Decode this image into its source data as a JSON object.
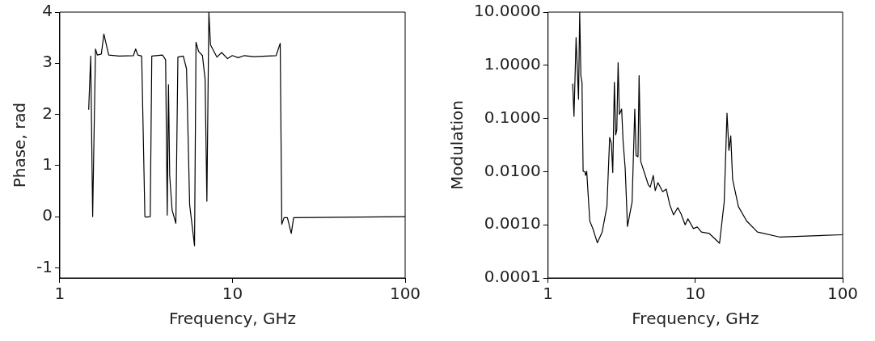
{
  "chart_data": [
    {
      "type": "line",
      "xlabel": "Frequency, GHz",
      "ylabel": "Phase, rad",
      "log": "x",
      "xlim": [
        1,
        100
      ],
      "xticks": [
        1,
        10,
        100
      ],
      "ylim": [
        -1.2,
        4
      ],
      "yticks": [
        -1,
        0,
        1,
        2,
        3,
        4
      ],
      "series": [
        {
          "color": "#000000",
          "x": [
            1.47,
            1.51,
            1.55,
            1.61,
            1.65,
            1.74,
            1.8,
            1.92,
            2.21,
            2.67,
            2.75,
            2.83,
            2.98,
            3.11,
            3.17,
            3.34,
            3.41,
            3.93,
            4.1,
            4.19,
            4.26,
            4.33,
            4.47,
            4.7,
            4.83,
            5.19,
            5.42,
            5.65,
            6.03,
            6.15,
            6.37,
            6.7,
            6.94,
            7.11,
            7.3,
            7.46,
            8.13,
            8.66,
            9.36,
            9.98,
            10.8,
            11.7,
            13.3,
            17.9,
            18.9,
            19.3,
            19.9,
            20.8,
            21.9,
            22.6,
            100
          ],
          "values": [
            2.09,
            3.14,
            0,
            3.28,
            3.16,
            3.18,
            3.57,
            3.16,
            3.14,
            3.15,
            3.28,
            3.16,
            3.14,
            0,
            -0.01,
            0,
            3.14,
            3.16,
            3.07,
            0.03,
            2.58,
            0.8,
            0.13,
            -0.13,
            3.12,
            3.14,
            2.89,
            0.23,
            -0.57,
            3.41,
            3.23,
            3.15,
            2.69,
            0.3,
            4,
            3.36,
            3.12,
            3.21,
            3.09,
            3.15,
            3.11,
            3.15,
            3.13,
            3.15,
            3.39,
            -0.15,
            -0.02,
            -0.02,
            -0.33,
            -0.02,
            0
          ]
        }
      ]
    },
    {
      "type": "line",
      "xlabel": "Frequency, GHz",
      "ylabel": "Modulation",
      "log": "xy",
      "xlim": [
        1,
        100
      ],
      "xticks": [
        1,
        10,
        100
      ],
      "ylim": [
        0.0001,
        10
      ],
      "yticks": [
        {
          "value": 0.0001,
          "label": "0.0001"
        },
        {
          "value": 0.001,
          "label": "0.0010"
        },
        {
          "value": 0.01,
          "label": "0.0100"
        },
        {
          "value": 0.1,
          "label": "0.1000"
        },
        {
          "value": 1,
          "label": "1.0000"
        },
        {
          "value": 10,
          "label": "10.0000"
        }
      ],
      "series": [
        {
          "color": "#000000",
          "x": [
            1.47,
            1.5,
            1.55,
            1.61,
            1.64,
            1.67,
            1.7,
            1.73,
            1.78,
            1.8,
            1.83,
            1.92,
            2.02,
            2.16,
            2.33,
            2.51,
            2.62,
            2.69,
            2.75,
            2.82,
            2.88,
            2.93,
            2.99,
            3.05,
            3.16,
            3.23,
            3.34,
            3.46,
            3.72,
            3.88,
            3.96,
            4.08,
            4.15,
            4.26,
            4.8,
            4.94,
            5.18,
            5.34,
            5.57,
            6.0,
            6.34,
            6.7,
            7.11,
            7.6,
            8.0,
            8.53,
            8.9,
            9.7,
            10.3,
            11.0,
            12.4,
            14.6,
            15.7,
            16.4,
            16.9,
            17.4,
            17.9,
            19.6,
            22.3,
            26.4,
            37.2,
            100
          ],
          "values": [
            0.45,
            0.11,
            3.3,
            0.23,
            10,
            0.64,
            0.48,
            0.0102,
            0.0099,
            0.0085,
            0.0102,
            0.00118,
            0.00083,
            0.00046,
            0.00073,
            0.0022,
            0.044,
            0.034,
            0.0096,
            0.48,
            0.049,
            0.061,
            1.12,
            0.12,
            0.15,
            0.038,
            0.0115,
            0.00093,
            0.0027,
            0.15,
            0.02,
            0.019,
            0.64,
            0.0155,
            0.0056,
            0.0051,
            0.0085,
            0.0044,
            0.0062,
            0.0042,
            0.0047,
            0.0024,
            0.00154,
            0.0021,
            0.0016,
            0.001,
            0.0013,
            0.00085,
            0.00091,
            0.00073,
            0.00069,
            0.00045,
            0.0027,
            0.126,
            0.025,
            0.047,
            0.0072,
            0.0022,
            0.00118,
            0.00073,
            0.00059,
            0.00065
          ]
        }
      ]
    }
  ]
}
